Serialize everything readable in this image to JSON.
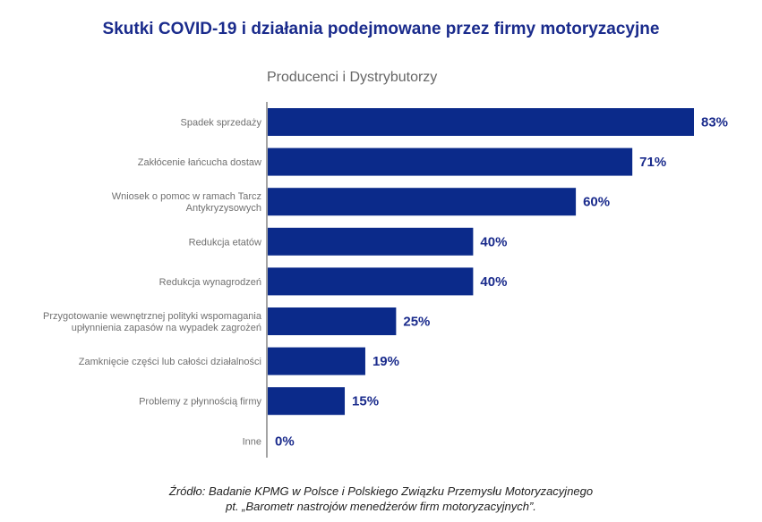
{
  "title": "Skutki COVID-19 i działania podejmowane przez firmy motoryzacyjne",
  "subtitle": "Producenci i Dystrybutorzy",
  "source": {
    "line1": "Źródło: Badanie KPMG w Polsce i Polskiego Związku Przemysłu Motoryzacyjnego",
    "line2": "pt. „Barometr nastrojów menedżerów firm motoryzacyjnych”."
  },
  "chart_data": {
    "type": "bar",
    "orientation": "horizontal",
    "bar_color": "#0b2a8a",
    "categories": [
      [
        "Spadek sprzedaży"
      ],
      [
        "Zakłócenie łańcucha dostaw"
      ],
      [
        "Wniosek o pomoc w ramach Tarcz",
        "Antykryzysowych"
      ],
      [
        "Redukcja etatów"
      ],
      [
        "Redukcja wynagrodzeń"
      ],
      [
        "Przygotowanie wewnętrznej polityki wspomagania",
        "upłynnienia zapasów na wypadek zagrożeń"
      ],
      [
        "Zamknięcie części lub całości działalności"
      ],
      [
        "Problemy z płynnością firmy"
      ],
      [
        "Inne"
      ]
    ],
    "values": [
      83,
      71,
      60,
      40,
      40,
      25,
      19,
      15,
      0
    ],
    "value_labels": [
      "83%",
      "71%",
      "60%",
      "40%",
      "40%",
      "25%",
      "19%",
      "15%",
      "0%"
    ],
    "xlim": [
      0,
      83
    ],
    "grid": false,
    "legend": "none"
  }
}
